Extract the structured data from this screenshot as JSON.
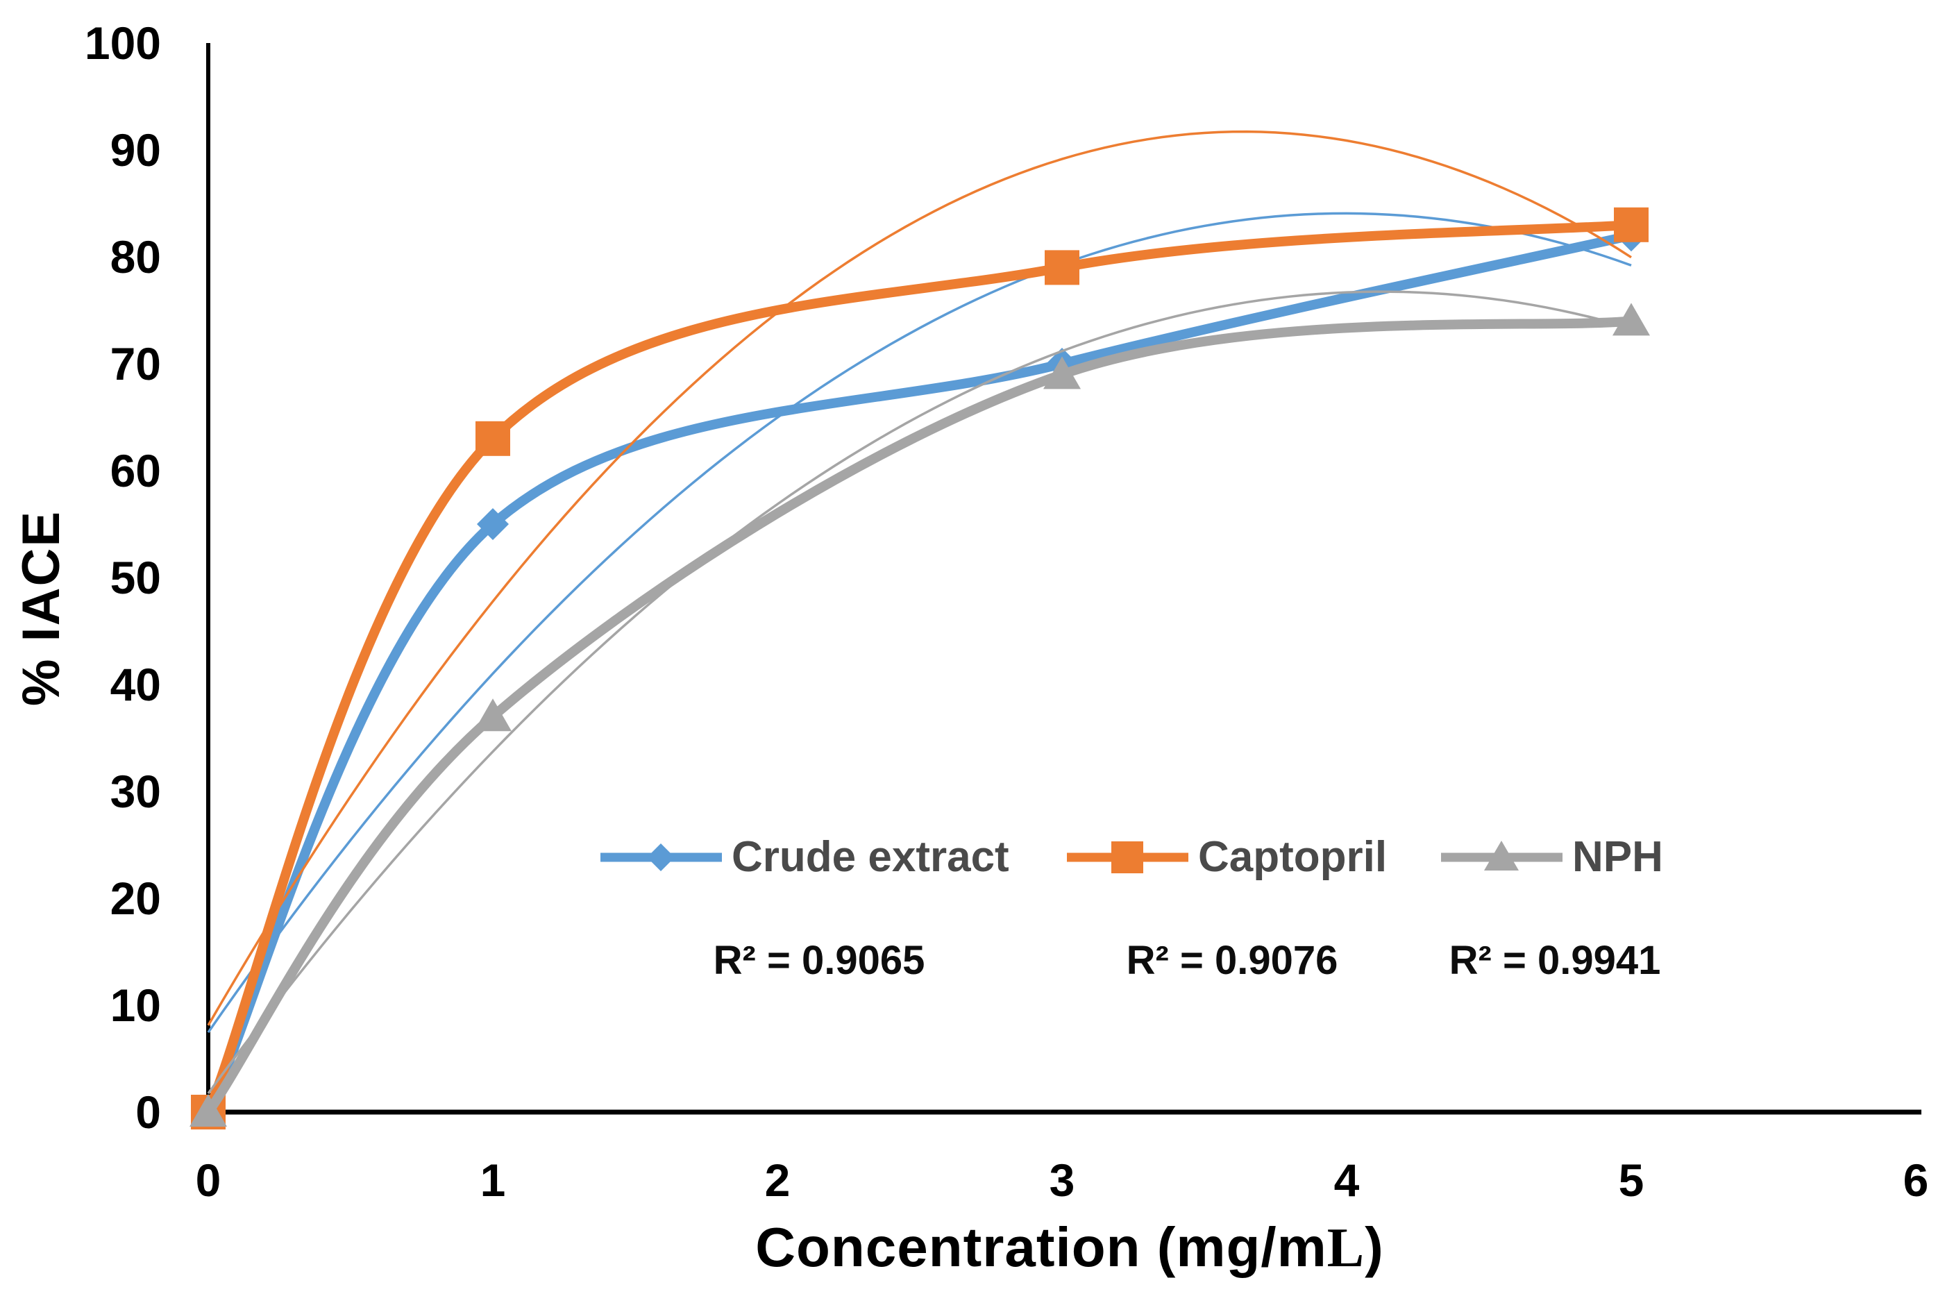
{
  "chart_data": {
    "type": "line",
    "title": "",
    "xlabel": "Concentration (mg/mL)",
    "xlabel_parts": [
      {
        "text": "Concentration (mg/m",
        "font": "sans"
      },
      {
        "text": "L",
        "font": "serif"
      },
      {
        "text": ")",
        "font": "sans"
      }
    ],
    "ylabel": "% IACE",
    "xlim": [
      0,
      6
    ],
    "ylim": [
      0,
      100
    ],
    "x_ticks": [
      "0",
      "1",
      "2",
      "3",
      "4",
      "5",
      "6"
    ],
    "y_ticks": [
      "0",
      "10",
      "20",
      "30",
      "40",
      "50",
      "60",
      "70",
      "80",
      "90",
      "100"
    ],
    "grid": false,
    "legend_position": "inside-lower-center",
    "x": [
      0,
      1,
      3,
      5
    ],
    "series": [
      {
        "name": "Crude extract",
        "color": "#5B9BD5",
        "marker": "diamond",
        "values": [
          0,
          55,
          70,
          82
        ],
        "trendline": "polynomial-order-2",
        "r_squared_label": "R² = 0.9065"
      },
      {
        "name": "Captopril",
        "color": "#ED7D31",
        "marker": "square",
        "values": [
          0,
          63,
          79,
          83
        ],
        "trendline": "polynomial-order-2",
        "r_squared_label": "R² = 0.9076"
      },
      {
        "name": "NPH",
        "color": "#A5A5A5",
        "marker": "triangle",
        "values": [
          0,
          37,
          69,
          74
        ],
        "trendline": "polynomial-order-2",
        "r_squared_label": "R² = 0.9941"
      }
    ],
    "axis_color": "#000000",
    "tick_text_color": "#000000",
    "legend_text_color": "#4a4a4a"
  }
}
